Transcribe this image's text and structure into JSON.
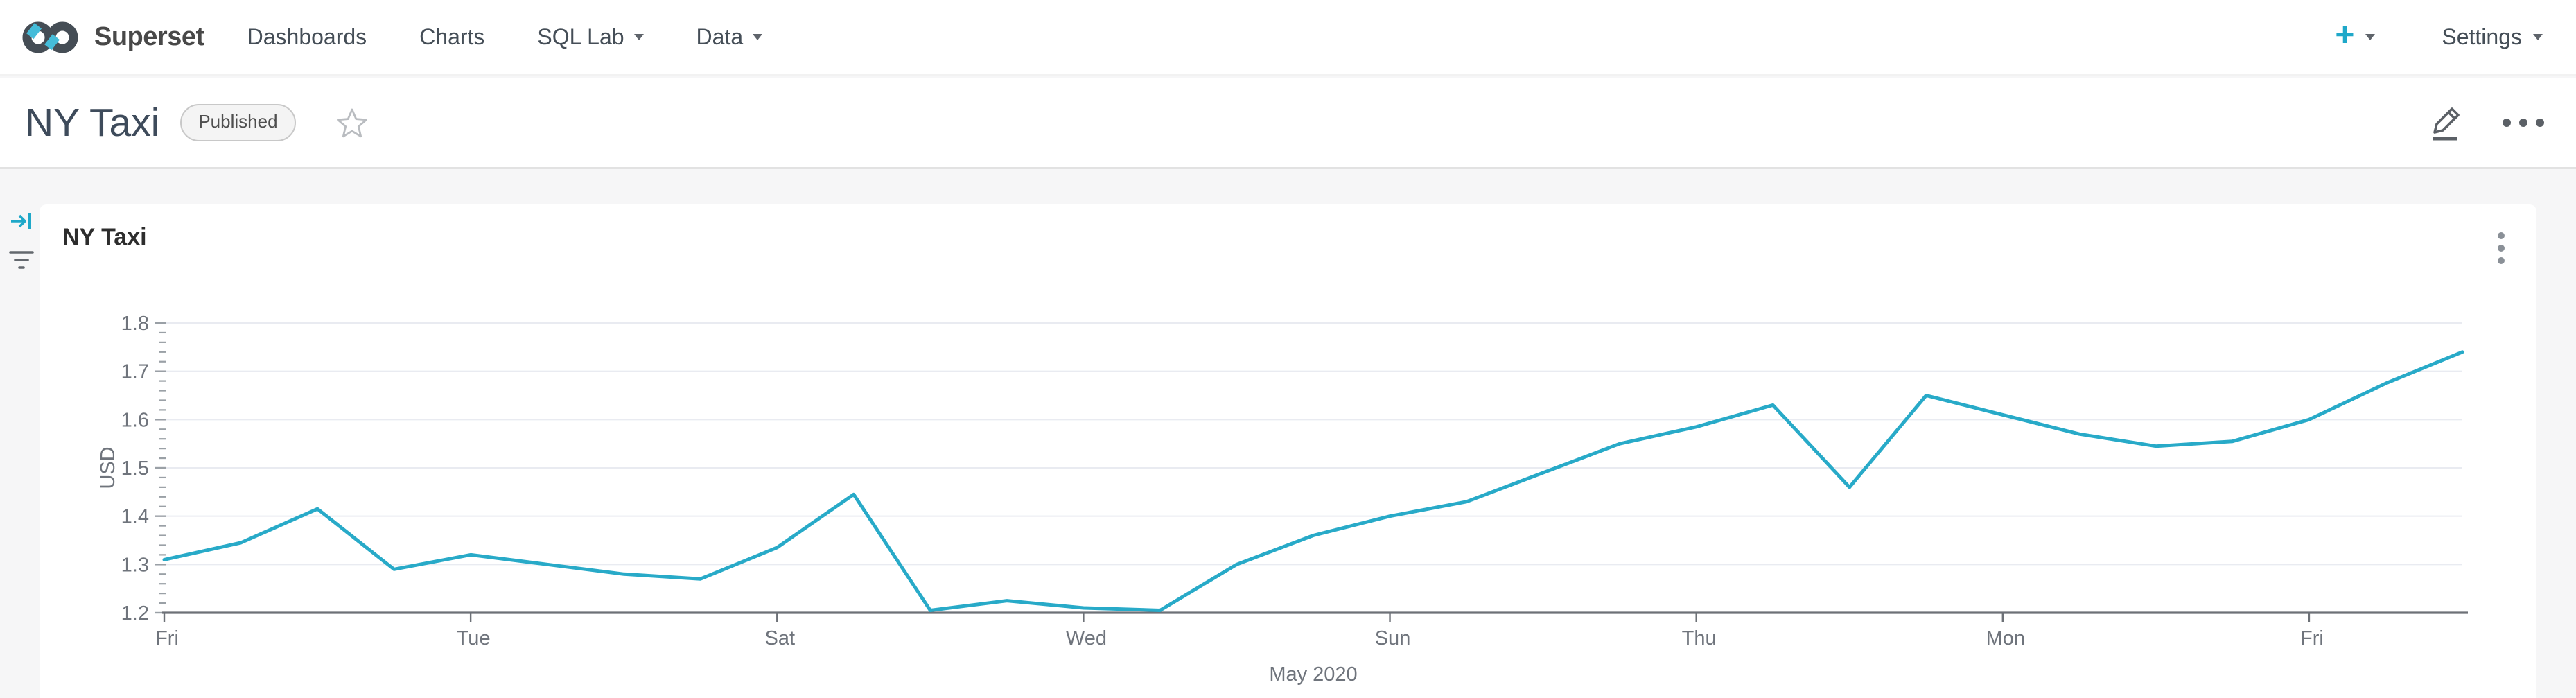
{
  "nav": {
    "brand": "Superset",
    "items": [
      {
        "label": "Dashboards",
        "has_caret": false
      },
      {
        "label": "Charts",
        "has_caret": false
      },
      {
        "label": "SQL Lab",
        "has_caret": true
      },
      {
        "label": "Data",
        "has_caret": true
      }
    ],
    "plus_label": "+",
    "settings_label": "Settings"
  },
  "header": {
    "title": "NY Taxi",
    "badge": "Published"
  },
  "chart_card": {
    "title": "NY Taxi"
  },
  "chart_data": {
    "type": "line",
    "title": "NY Taxi",
    "xlabel": "May 2020",
    "ylabel": "USD",
    "ylim": [
      1.2,
      1.8
    ],
    "y_tick_step": 0.1,
    "y_minor_step": 0.02,
    "grid": true,
    "legend": "none",
    "x_day_of_month": [
      1,
      2,
      3,
      4,
      5,
      6,
      7,
      8,
      9,
      10,
      11,
      12,
      13,
      14,
      15,
      16,
      17,
      18,
      19,
      20,
      21,
      22,
      23,
      24,
      25,
      26,
      27,
      28,
      29,
      30,
      31
    ],
    "values": [
      1.31,
      1.345,
      1.415,
      1.29,
      1.32,
      1.3,
      1.28,
      1.27,
      1.335,
      1.445,
      1.205,
      1.225,
      1.21,
      1.205,
      1.3,
      1.36,
      1.4,
      1.43,
      1.49,
      1.55,
      1.585,
      1.63,
      1.46,
      1.65,
      1.61,
      1.57,
      1.545,
      1.555,
      1.6,
      1.675,
      1.74
    ],
    "x_ticks": [
      {
        "index": 0,
        "label": "Fri"
      },
      {
        "index": 4,
        "label": "Tue"
      },
      {
        "index": 8,
        "label": "Sat"
      },
      {
        "index": 12,
        "label": "Wed"
      },
      {
        "index": 16,
        "label": "Sun"
      },
      {
        "index": 20,
        "label": "Thu"
      },
      {
        "index": 24,
        "label": "Mon"
      },
      {
        "index": 28,
        "label": "Fri"
      }
    ]
  },
  "colors": {
    "accent_teal": "#1FA8C9",
    "logo_dark": "#454d55",
    "logo_accent": "#45bcd9",
    "line": "#28AAC8",
    "grid": "#e9ebf1",
    "axis": "#6d7177",
    "tick": "#9aa0a6",
    "axis_label": "#6f747c"
  }
}
